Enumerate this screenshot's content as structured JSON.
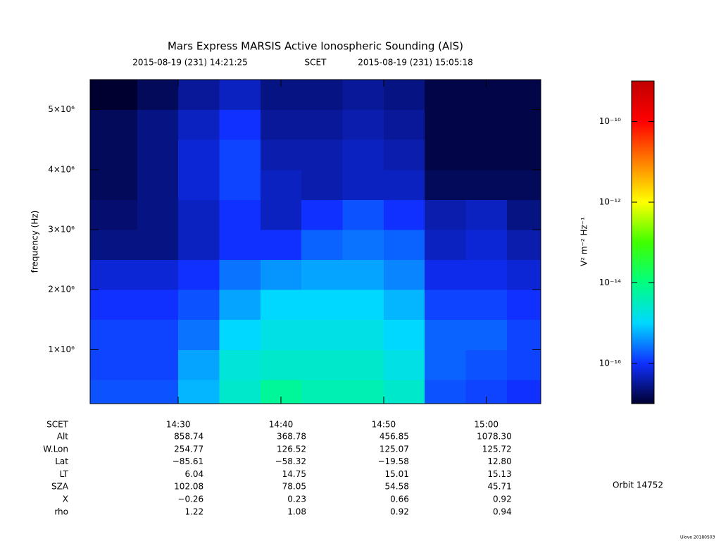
{
  "chart_data": {
    "type": "spectrogram",
    "title": "Mars Express MARSIS Active Ionospheric Sounding (AIS)",
    "start_time": "2015-08-19 (231) 14:21:25",
    "time_system": "SCET",
    "end_time": "2015-08-19 (231) 15:05:18",
    "ylabel": "frequency (Hz)",
    "xlabel": "SCET",
    "xlim": [
      861.4167,
      905.3
    ],
    "xticks": [
      {
        "value": 870,
        "label": "14:30"
      },
      {
        "value": 880,
        "label": "14:40"
      },
      {
        "value": 890,
        "label": "14:50"
      },
      {
        "value": 900,
        "label": "15:00"
      }
    ],
    "ylim": [
      100000,
      5500000
    ],
    "yticks": [
      {
        "value": 1000000,
        "label": "1×10⁶"
      },
      {
        "value": 2000000,
        "label": "2×10⁶"
      },
      {
        "value": 3000000,
        "label": "3×10⁶"
      },
      {
        "value": 4000000,
        "label": "4×10⁶"
      },
      {
        "value": 5000000,
        "label": "5×10⁶"
      }
    ],
    "x_bins": [
      861.4167,
      866,
      870,
      874,
      878,
      882,
      886,
      890,
      894,
      898,
      902,
      905.3
    ],
    "y_bins": [
      100000,
      500000,
      1000000,
      1500000,
      2000000,
      2500000,
      3000000,
      3500000,
      4000000,
      4500000,
      5000000,
      5500000
    ],
    "z": [
      [
        1.6e-16,
        1.6e-16,
        6.3e-16,
        2.5e-15,
        6.3e-15,
        4e-15,
        4e-15,
        2.5e-15,
        1.6e-16,
        1.3e-16,
        1e-16
      ],
      [
        1.3e-16,
        1.3e-16,
        5e-16,
        2e-15,
        2.5e-15,
        2.5e-15,
        2.5e-15,
        1.6e-15,
        2e-16,
        1.6e-16,
        1.3e-16
      ],
      [
        1.3e-16,
        1.3e-16,
        2.5e-16,
        1e-15,
        1.6e-15,
        1.6e-15,
        1.6e-15,
        1e-15,
        2e-16,
        2e-16,
        1.3e-16
      ],
      [
        1e-16,
        1e-16,
        1.6e-16,
        5e-16,
        1e-15,
        1e-15,
        1e-15,
        6.3e-16,
        1.3e-16,
        1.3e-16,
        1e-16
      ],
      [
        6.3e-17,
        6.3e-17,
        1e-16,
        2.5e-16,
        4e-16,
        5e-16,
        5e-16,
        3.2e-16,
        8e-17,
        8e-17,
        6.3e-17
      ],
      [
        2.5e-17,
        2.5e-17,
        5e-17,
        1e-16,
        1e-16,
        2e-16,
        2.5e-16,
        2e-16,
        5e-17,
        6.3e-17,
        4e-17
      ],
      [
        2e-17,
        2.5e-17,
        5e-17,
        1e-16,
        5e-17,
        1e-16,
        1.6e-16,
        1e-16,
        4e-17,
        5e-17,
        2.5e-17
      ],
      [
        1.6e-17,
        2.5e-17,
        6.3e-17,
        1.3e-16,
        5e-17,
        4e-17,
        5e-17,
        5e-17,
        1.6e-17,
        1.6e-17,
        1.6e-17
      ],
      [
        1.6e-17,
        2.5e-17,
        6.3e-17,
        1.3e-16,
        4e-17,
        4e-17,
        5e-17,
        4e-17,
        1.3e-17,
        1.3e-17,
        1.3e-17
      ],
      [
        1.6e-17,
        2.5e-17,
        5e-17,
        1e-16,
        3.2e-17,
        3.2e-17,
        4e-17,
        3.2e-17,
        1.3e-17,
        1.3e-17,
        1.3e-17
      ],
      [
        1e-17,
        1.6e-17,
        3.2e-17,
        5e-17,
        2.5e-17,
        2.5e-17,
        3.2e-17,
        2.5e-17,
        1.3e-17,
        1.3e-17,
        1.3e-17
      ]
    ],
    "colorbar_label": "V² m⁻² Hz⁻¹",
    "zlim": [
      1e-17,
      1e-09
    ],
    "zscale": "log",
    "zticks": [
      {
        "value": 1e-16,
        "label": "10⁻¹⁶"
      },
      {
        "value": 1e-14,
        "label": "10⁻¹⁴"
      },
      {
        "value": 1e-12,
        "label": "10⁻¹²"
      },
      {
        "value": 1e-10,
        "label": "10⁻¹⁰"
      }
    ],
    "colormap": [
      "#000030",
      "#1030ff",
      "#00d8ff",
      "#00ff80",
      "#40ff00",
      "#ffff00",
      "#ff8000",
      "#ff0000",
      "#c00000"
    ],
    "ephemeris": [
      {
        "label": "Alt",
        "values": [
          "858.74",
          "368.78",
          "456.85",
          "1078.30"
        ]
      },
      {
        "label": "W.Lon",
        "values": [
          "254.77",
          "126.52",
          "125.07",
          "125.72"
        ]
      },
      {
        "label": "Lat",
        "values": [
          "−85.61",
          "−58.32",
          "−19.58",
          "12.80"
        ]
      },
      {
        "label": "LT",
        "values": [
          "6.04",
          "14.75",
          "15.01",
          "15.13"
        ]
      },
      {
        "label": "SZA",
        "values": [
          "102.08",
          "78.05",
          "54.58",
          "45.71"
        ]
      },
      {
        "label": "X",
        "values": [
          "−0.26",
          "0.23",
          "0.66",
          "0.92"
        ]
      },
      {
        "label": "rho",
        "values": [
          "1.22",
          "1.08",
          "0.92",
          "0.94"
        ]
      }
    ],
    "orbit": "Orbit 14752",
    "footer": "Ulove 20180503"
  }
}
